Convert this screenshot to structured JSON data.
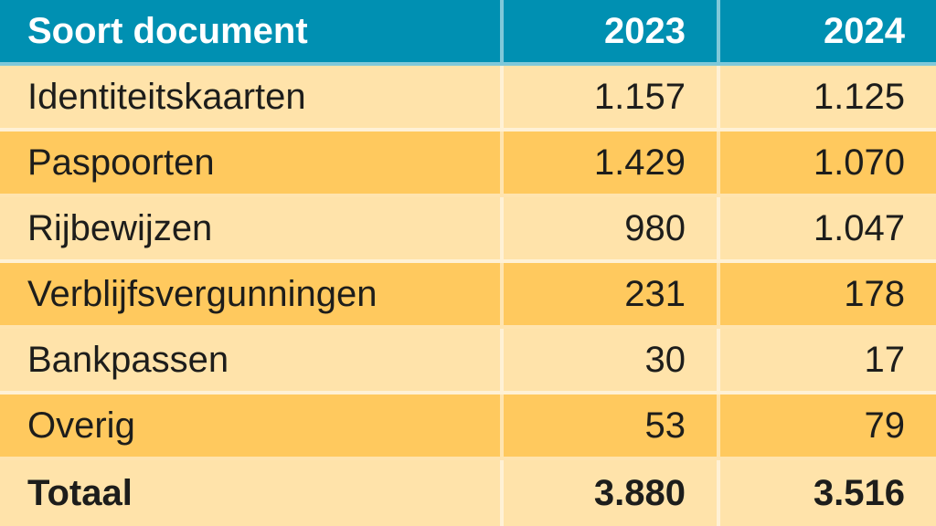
{
  "chart_data": {
    "type": "table",
    "columns": [
      "Soort document",
      "2023",
      "2024"
    ],
    "rows": [
      {
        "label": "Identiteitskaarten",
        "v2023": "1.157",
        "v2024": "1.125"
      },
      {
        "label": "Paspoorten",
        "v2023": "1.429",
        "v2024": "1.070"
      },
      {
        "label": "Rijbewijzen",
        "v2023": "980",
        "v2024": "1.047"
      },
      {
        "label": "Verblijfsvergunningen",
        "v2023": "231",
        "v2024": "178"
      },
      {
        "label": "Bankpassen",
        "v2023": "30",
        "v2024": "17"
      },
      {
        "label": "Overig",
        "v2023": "53",
        "v2024": "79"
      },
      {
        "label": "Totaal",
        "v2023": "3.880",
        "v2024": "3.516",
        "is_total": true
      }
    ],
    "layout": {
      "header_align": [
        "left",
        "right",
        "right"
      ],
      "row_striping": [
        "light",
        "dark",
        "light",
        "dark",
        "light",
        "dark",
        "light"
      ],
      "grid": "translucent white dividers between all rows and columns"
    }
  },
  "colors": {
    "header_bg": "#0090B2",
    "header_text": "#FFFFFF",
    "row_light_bg": "#FFE3AA",
    "row_dark_bg": "#FFC95E",
    "body_text": "#1D1D1B",
    "divider": "rgba(255,255,255,0.5)"
  }
}
